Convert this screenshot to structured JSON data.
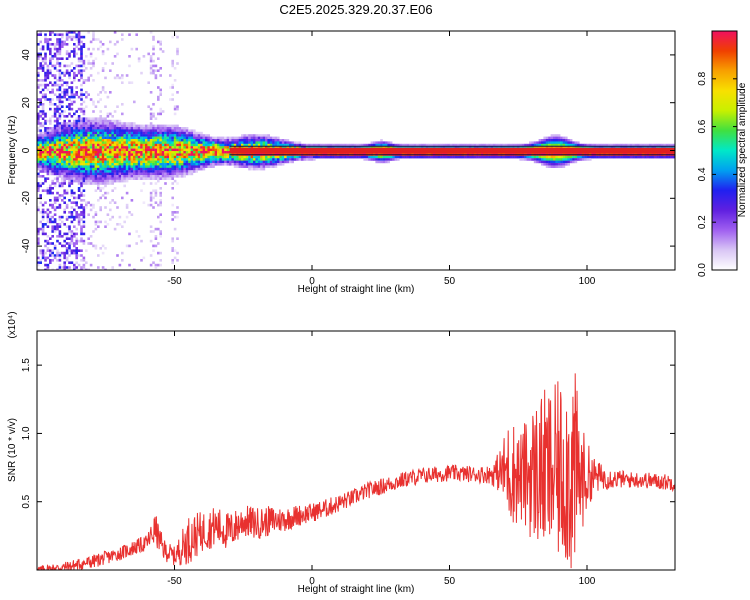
{
  "title": "C2E5.2025.329.20.37.E06",
  "colors": {
    "snr_line": "#e8312f",
    "center_band": "#e02020",
    "colormap": [
      "#ffffff",
      "#d9c6f5",
      "#a060f0",
      "#6020e0",
      "#2020f0",
      "#00a0f0",
      "#00e8c8",
      "#40e040",
      "#c8f000",
      "#f8e000",
      "#f8a000",
      "#f04000",
      "#f01060"
    ]
  },
  "chart_data": [
    {
      "type": "heatmap",
      "name": "spectrogram",
      "xlabel": "Height of straight line (km)",
      "ylabel": "Frequency (Hz)",
      "xlim": [
        -100,
        132
      ],
      "ylim": [
        -50,
        50
      ],
      "x_ticks": [
        -50,
        0,
        50,
        100
      ],
      "y_ticks": [
        -40,
        -20,
        0,
        20,
        40
      ],
      "colorbar": {
        "label": "Normalized spectral amplitude",
        "range": [
          0,
          1
        ],
        "ticks": [
          0.0,
          0.2,
          0.4,
          0.6,
          0.8
        ]
      },
      "dominant_frequency_hz": 0,
      "broadband_until_x": -47,
      "burst_x": [
        -83,
        -48,
        88
      ]
    },
    {
      "type": "line",
      "name": "snr",
      "xlabel": "Height of straight line (km)",
      "ylabel": "SNR (10 * v/v)",
      "y_multiplier": "(x10⁴)",
      "xlim": [
        -100,
        132
      ],
      "ylim": [
        0,
        17500
      ],
      "x_ticks": [
        -50,
        0,
        50,
        100
      ],
      "y_ticks": [
        0.5,
        1.0,
        1.5
      ],
      "y_tick_labels": [
        "0.5",
        "1.0",
        "1.5"
      ],
      "series": [
        {
          "x": [
            -100,
            -90,
            -80,
            -70,
            -60,
            -57,
            -54,
            -50,
            -45,
            -40,
            -35,
            -30,
            -25,
            -20,
            -15,
            -10,
            -5,
            0,
            5,
            10,
            15,
            20,
            25,
            30,
            35,
            40,
            45,
            50,
            55,
            60,
            65,
            68,
            72,
            76,
            80,
            84,
            88,
            92,
            95,
            98,
            102,
            105,
            110,
            115,
            120,
            125,
            132
          ],
          "y": [
            0,
            200,
            600,
            1200,
            2000,
            3000,
            1500,
            1000,
            2200,
            2800,
            3200,
            2800,
            3600,
            3400,
            3600,
            3700,
            4000,
            4200,
            4500,
            4900,
            5300,
            5800,
            6100,
            6400,
            6700,
            6900,
            7000,
            7100,
            7050,
            7000,
            7000,
            7200,
            7300,
            6800,
            7100,
            7200,
            7000,
            7400,
            7200,
            6700,
            6900,
            6800,
            6700,
            6600,
            6600,
            6500,
            6400
          ],
          "oscillation": [
            300,
            400,
            500,
            500,
            600,
            1200,
            800,
            700,
            1800,
            1500,
            1500,
            1400,
            1200,
            1200,
            1100,
            900,
            800,
            700,
            700,
            650,
            600,
            600,
            600,
            600,
            600,
            600,
            600,
            600,
            600,
            600,
            700,
            1500,
            4000,
            3500,
            5000,
            6000,
            6500,
            7000,
            8500,
            4000,
            1500,
            1000,
            700,
            600,
            600,
            600,
            600
          ]
        }
      ]
    }
  ]
}
